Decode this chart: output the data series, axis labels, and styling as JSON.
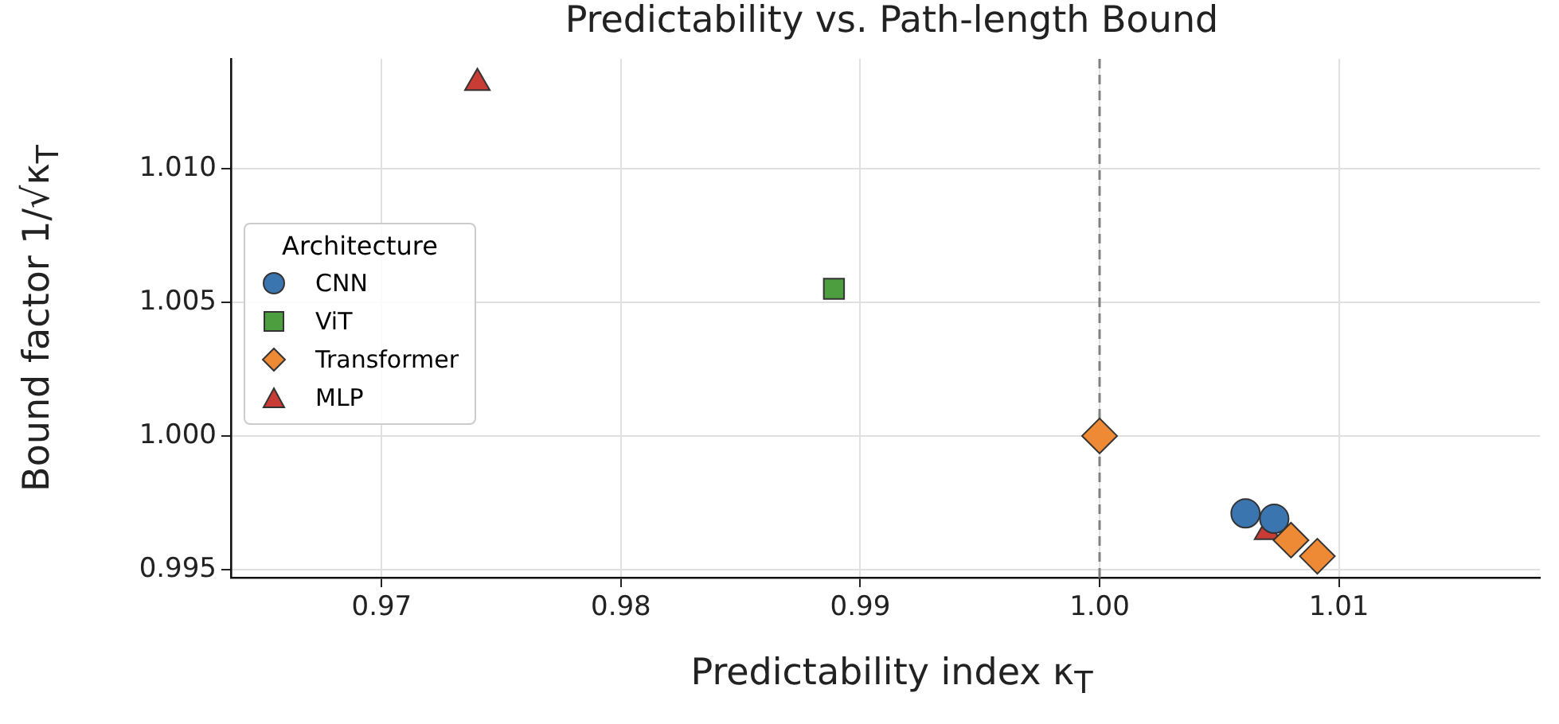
{
  "chart_data": {
    "type": "scatter",
    "title": "Predictability vs. Path-length Bound",
    "xlabel": "Predictability index κ$_{T}$",
    "ylabel": "Bound factor 1/√κ$_{T}$",
    "legend_title": "Architecture",
    "legend": "center left",
    "grid": true,
    "xlim": [
      0.9637,
      1.0184
    ],
    "xticks": [
      0.97,
      0.98,
      0.99,
      {
        "value": 1.0,
        "label": "1.00"
      },
      1.01
    ],
    "ylim": [
      0.9947,
      1.0141
    ],
    "yticks": [
      {
        "value": 0.995,
        "label": "0.995"
      },
      {
        "value": 1.0,
        "label": "1.000"
      },
      {
        "value": 1.005,
        "label": "1.005"
      },
      {
        "value": 1.01,
        "label": "1.010"
      }
    ],
    "ref_lines": [
      {
        "axis": "x",
        "value": 1.0,
        "color": "#808080",
        "line_style": "dashed"
      }
    ],
    "series": [
      {
        "name": "CNN",
        "color": "#3a75b0",
        "marker": "circle",
        "x": [
          1.0061,
          1.0073
        ],
        "values": [
          0.9971,
          0.9969
        ]
      },
      {
        "name": "ViT",
        "color": "#4c9e3f",
        "marker": "square",
        "x": [
          0.9889
        ],
        "values": [
          1.0055
        ]
      },
      {
        "name": "Transformer",
        "color": "#ee8a35",
        "marker": "diamond",
        "x": [
          1.0,
          1.008,
          1.0091
        ],
        "values": [
          1.0,
          0.9961,
          0.9955
        ]
      },
      {
        "name": "MLP",
        "color": "#c83c35",
        "marker": "triangle",
        "x": [
          0.974,
          1.007
        ],
        "values": [
          1.0132,
          0.9964
        ]
      }
    ]
  }
}
